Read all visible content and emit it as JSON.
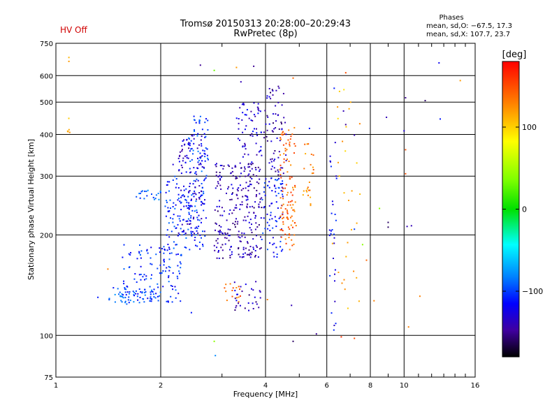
{
  "header": {
    "hv_status": "HV Off",
    "title": "Tromsø 20150313 20:28:00–20:29:43",
    "subtitle": "RwPretec (8p)"
  },
  "stats": {
    "title": "Phases",
    "o_line": "mean, sd,O: −67.5, 17.3",
    "x_line": "mean, sd,X: 107.7, 23.7"
  },
  "colorbar": {
    "label": "[deg]",
    "ticks": [
      100,
      0,
      -100
    ],
    "tick_labels": [
      "100",
      "0",
      "−100"
    ],
    "range": [
      -180,
      180
    ]
  },
  "colors": {
    "hv_status": "#d00000",
    "grid": "#000000"
  },
  "chart_data": {
    "type": "scatter",
    "title": "Tromsø 20150313 20:28:00–20:29:43",
    "subtitle": "RwPretec (8p)",
    "xlabel": "Frequency [MHz]",
    "ylabel": "Stationary phase Virtual Height [km]",
    "x_scale": "log",
    "y_scale": "log",
    "xlim": [
      1,
      16
    ],
    "ylim": [
      75,
      750
    ],
    "x_ticks": [
      1,
      2,
      4,
      6,
      8,
      10,
      16
    ],
    "x_tick_labels": [
      "1",
      "2",
      "4",
      "6",
      "8",
      "10",
      "16"
    ],
    "y_ticks": [
      75,
      100,
      200,
      300,
      400,
      500,
      600,
      750
    ],
    "y_tick_labels": [
      "75",
      "100",
      "200",
      "300",
      "400",
      "500",
      "600",
      "750"
    ],
    "x_minor": [
      3,
      5,
      7,
      9,
      11,
      12,
      13,
      14,
      15
    ],
    "grid": true,
    "color_encoding": "phase [deg]",
    "clusters": [
      {
        "x": [
          1.42,
          2.0
        ],
        "y": [
          124,
          140
        ],
        "n": 60,
        "phase": -95
      },
      {
        "x": [
          1.55,
          2.3
        ],
        "y": [
          125,
          190
        ],
        "n": 120,
        "phase": -105
      },
      {
        "x": [
          1.7,
          2.0
        ],
        "y": [
          255,
          272
        ],
        "n": 20,
        "phase": -95
      },
      {
        "x": [
          2.05,
          2.7
        ],
        "y": [
          180,
          300
        ],
        "n": 140,
        "phase": -105
      },
      {
        "x": [
          2.4,
          2.75
        ],
        "y": [
          300,
          460
        ],
        "n": 60,
        "phase": -100
      },
      {
        "x": [
          2.25,
          2.7
        ],
        "y": [
          200,
          400
        ],
        "n": 120,
        "phase": -130
      },
      {
        "x": [
          2.85,
          3.9
        ],
        "y": [
          170,
          330
        ],
        "n": 260,
        "phase": -140
      },
      {
        "x": [
          3.3,
          3.9
        ],
        "y": [
          330,
          500
        ],
        "n": 60,
        "phase": -130
      },
      {
        "x": [
          3.9,
          4.5
        ],
        "y": [
          170,
          300
        ],
        "n": 80,
        "phase": -110
      },
      {
        "x": [
          3.95,
          4.6
        ],
        "y": [
          300,
          560
        ],
        "n": 70,
        "phase": -140
      },
      {
        "x": [
          4.4,
          4.9
        ],
        "y": [
          180,
          420
        ],
        "n": 110,
        "phase": 140
      },
      {
        "x": [
          3.05,
          3.4
        ],
        "y": [
          125,
          146
        ],
        "n": 15,
        "phase": 140
      },
      {
        "x": [
          3.2,
          3.9
        ],
        "y": [
          118,
          145
        ],
        "n": 30,
        "phase": -140
      },
      {
        "x": [
          5.1,
          5.5
        ],
        "y": [
          245,
          375
        ],
        "n": 25,
        "phase": 130
      },
      {
        "x": [
          6.1,
          6.4
        ],
        "y": [
          100,
          380
        ],
        "n": 30,
        "phase": -120
      },
      {
        "x": [
          6.2,
          7.5
        ],
        "y": [
          115,
          560
        ],
        "n": 30,
        "phase": 110
      },
      {
        "x": [
          1.08,
          1.1
        ],
        "y": [
          405,
          450
        ],
        "n": 5,
        "phase": 120
      }
    ],
    "isolated": [
      {
        "x": 1.09,
        "y": 662,
        "phase": 120
      },
      {
        "x": 1.09,
        "y": 680,
        "phase": 110
      },
      {
        "x": 1.32,
        "y": 130,
        "phase": -110
      },
      {
        "x": 1.41,
        "y": 158,
        "phase": 130
      },
      {
        "x": 2.6,
        "y": 645,
        "phase": -150
      },
      {
        "x": 2.85,
        "y": 622,
        "phase": 30
      },
      {
        "x": 3.3,
        "y": 635,
        "phase": 120
      },
      {
        "x": 3.4,
        "y": 575,
        "phase": -140
      },
      {
        "x": 3.7,
        "y": 640,
        "phase": -150
      },
      {
        "x": 4.8,
        "y": 590,
        "phase": 140
      },
      {
        "x": 6.8,
        "y": 612,
        "phase": 150
      },
      {
        "x": 6.3,
        "y": 550,
        "phase": -110
      },
      {
        "x": 8.9,
        "y": 450,
        "phase": -140
      },
      {
        "x": 10.1,
        "y": 515,
        "phase": -150
      },
      {
        "x": 11.5,
        "y": 505,
        "phase": -160
      },
      {
        "x": 12.6,
        "y": 655,
        "phase": -120
      },
      {
        "x": 12.7,
        "y": 445,
        "phase": -110
      },
      {
        "x": 14.5,
        "y": 580,
        "phase": 120
      },
      {
        "x": 10.0,
        "y": 410,
        "phase": -130
      },
      {
        "x": 10.1,
        "y": 360,
        "phase": 150
      },
      {
        "x": 10.1,
        "y": 305,
        "phase": 150
      },
      {
        "x": 8.5,
        "y": 240,
        "phase": 40
      },
      {
        "x": 9.0,
        "y": 218,
        "phase": -160
      },
      {
        "x": 9.0,
        "y": 211,
        "phase": -160
      },
      {
        "x": 10.2,
        "y": 212,
        "phase": -140
      },
      {
        "x": 10.5,
        "y": 213,
        "phase": -140
      },
      {
        "x": 7.2,
        "y": 208,
        "phase": -100
      },
      {
        "x": 7.6,
        "y": 187,
        "phase": 40
      },
      {
        "x": 7.8,
        "y": 168,
        "phase": 140
      },
      {
        "x": 8.2,
        "y": 127,
        "phase": 130
      },
      {
        "x": 11.1,
        "y": 131,
        "phase": 130
      },
      {
        "x": 10.3,
        "y": 106,
        "phase": 130
      },
      {
        "x": 4.8,
        "y": 96,
        "phase": -160
      },
      {
        "x": 5.6,
        "y": 101,
        "phase": -150
      },
      {
        "x": 6.6,
        "y": 99,
        "phase": 160
      },
      {
        "x": 7.2,
        "y": 98,
        "phase": 150
      },
      {
        "x": 2.85,
        "y": 96,
        "phase": 40
      },
      {
        "x": 2.87,
        "y": 87,
        "phase": -80
      },
      {
        "x": 2.45,
        "y": 117,
        "phase": -110
      },
      {
        "x": 4.75,
        "y": 123,
        "phase": -140
      },
      {
        "x": 4.05,
        "y": 128,
        "phase": 130
      },
      {
        "x": 5.35,
        "y": 417,
        "phase": -110
      },
      {
        "x": 6.8,
        "y": 428,
        "phase": -150
      },
      {
        "x": 7.2,
        "y": 398,
        "phase": -140
      },
      {
        "x": 6.7,
        "y": 470,
        "phase": -140
      },
      {
        "x": 2.17,
        "y": 325,
        "phase": -130
      }
    ]
  }
}
